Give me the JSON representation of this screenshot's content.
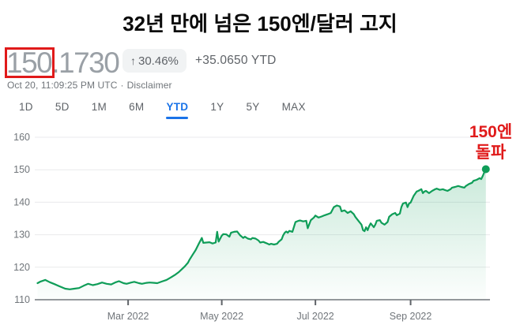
{
  "page_title": "32년 만에 넘은 150엔/달러 고지",
  "quote": {
    "price_main": "150",
    "price_rest": ".1730",
    "change_arrow": "↑",
    "change_pct": "30.46%",
    "ytd_change": "+35.0650 YTD",
    "timestamp": "Oct 20, 11:09:25 PM UTC",
    "separator": "·",
    "disclaimer": "Disclaimer"
  },
  "tabs": [
    {
      "label": "1D",
      "active": false
    },
    {
      "label": "5D",
      "active": false
    },
    {
      "label": "1M",
      "active": false
    },
    {
      "label": "6M",
      "active": false
    },
    {
      "label": "YTD",
      "active": true
    },
    {
      "label": "1Y",
      "active": false
    },
    {
      "label": "5Y",
      "active": false
    },
    {
      "label": "MAX",
      "active": false
    }
  ],
  "annotation": {
    "line1": "150엔",
    "line2": "돌파"
  },
  "colors": {
    "accent_blue": "#1a73e8",
    "line_green": "#0f9d58",
    "alert_red": "#e01a1a",
    "badge_bg": "#f1f3f4",
    "grid": "#e9eaec",
    "axis": "#85898e",
    "axis_label": "#70757a"
  },
  "chart_data": {
    "type": "area",
    "title": "USD/JPY YTD 2022",
    "xlabel": "",
    "ylabel": "",
    "x_unit": "day_of_year_2022",
    "x_start": "Jan 1, 2022",
    "x_end": "Oct 20, 2022",
    "ylim": [
      110,
      165
    ],
    "y_ticks": [
      110,
      120,
      130,
      140,
      150,
      160
    ],
    "x_ticks": [
      {
        "label": "Mar 2022",
        "day": 59
      },
      {
        "label": "May 2022",
        "day": 120
      },
      {
        "label": "Jul 2022",
        "day": 181
      },
      {
        "label": "Sep 2022",
        "day": 243
      }
    ],
    "legend": [],
    "grid": true,
    "end_value": 150.173,
    "points": [
      [
        0,
        115.1
      ],
      [
        2,
        115.6
      ],
      [
        5,
        116.1
      ],
      [
        8,
        115.4
      ],
      [
        11,
        114.8
      ],
      [
        14,
        114.2
      ],
      [
        18,
        113.4
      ],
      [
        21,
        113.2
      ],
      [
        24,
        113.4
      ],
      [
        27,
        113.6
      ],
      [
        30,
        114.3
      ],
      [
        33,
        114.9
      ],
      [
        36,
        114.5
      ],
      [
        39,
        114.8
      ],
      [
        42,
        115.3
      ],
      [
        45,
        114.9
      ],
      [
        48,
        114.7
      ],
      [
        51,
        115.4
      ],
      [
        53,
        115.7
      ],
      [
        56,
        115.1
      ],
      [
        58,
        114.9
      ],
      [
        61,
        115.3
      ],
      [
        63,
        115.5
      ],
      [
        66,
        115.1
      ],
      [
        68,
        114.9
      ],
      [
        71,
        115.2
      ],
      [
        73,
        115.3
      ],
      [
        76,
        115.2
      ],
      [
        78,
        115.1
      ],
      [
        81,
        115.6
      ],
      [
        84,
        116.1
      ],
      [
        87,
        116.9
      ],
      [
        90,
        117.8
      ],
      [
        92,
        118.5
      ],
      [
        94,
        119.4
      ],
      [
        96,
        120.3
      ],
      [
        98,
        121.4
      ],
      [
        99,
        122.3
      ],
      [
        101,
        123.8
      ],
      [
        103,
        125.3
      ],
      [
        105,
        127.2
      ],
      [
        107,
        129.0
      ],
      [
        108,
        127.5
      ],
      [
        110,
        127.6
      ],
      [
        112,
        127.7
      ],
      [
        114,
        127.3
      ],
      [
        116,
        127.6
      ],
      [
        117,
        130.9
      ],
      [
        118,
        127.9
      ],
      [
        120,
        129.7
      ],
      [
        121,
        130.2
      ],
      [
        123,
        130.1
      ],
      [
        125,
        129.4
      ],
      [
        126,
        130.6
      ],
      [
        128,
        130.9
      ],
      [
        130,
        131.0
      ],
      [
        132,
        129.8
      ],
      [
        134,
        129.0
      ],
      [
        135,
        129.4
      ],
      [
        137,
        128.8
      ],
      [
        139,
        128.6
      ],
      [
        140,
        129.0
      ],
      [
        142,
        128.8
      ],
      [
        144,
        128.2
      ],
      [
        145,
        127.6
      ],
      [
        147,
        127.8
      ],
      [
        149,
        127.4
      ],
      [
        151,
        127.0
      ],
      [
        152,
        127.2
      ],
      [
        154,
        127.0
      ],
      [
        156,
        127.2
      ],
      [
        157,
        127.8
      ],
      [
        159,
        128.6
      ],
      [
        160,
        129.8
      ],
      [
        161,
        130.6
      ],
      [
        162,
        131.0
      ],
      [
        163,
        130.6
      ],
      [
        164,
        131.2
      ],
      [
        166,
        130.9
      ],
      [
        168,
        133.9
      ],
      [
        170,
        134.3
      ],
      [
        171,
        134.4
      ],
      [
        173,
        134.1
      ],
      [
        175,
        134.3
      ],
      [
        176,
        132.0
      ],
      [
        178,
        134.5
      ],
      [
        180,
        135.3
      ],
      [
        181,
        135.9
      ],
      [
        183,
        135.3
      ],
      [
        185,
        135.6
      ],
      [
        187,
        136.0
      ],
      [
        189,
        136.3
      ],
      [
        191,
        136.7
      ],
      [
        193,
        138.5
      ],
      [
        195,
        139.0
      ],
      [
        197,
        138.7
      ],
      [
        198,
        137.2
      ],
      [
        200,
        137.5
      ],
      [
        202,
        136.7
      ],
      [
        204,
        137.2
      ],
      [
        206,
        136.3
      ],
      [
        207,
        135.5
      ],
      [
        209,
        134.3
      ],
      [
        211,
        133.1
      ],
      [
        212,
        131.4
      ],
      [
        213,
        131.1
      ],
      [
        214,
        132.3
      ],
      [
        215,
        131.4
      ],
      [
        216,
        132.6
      ],
      [
        217,
        133.5
      ],
      [
        219,
        132.3
      ],
      [
        220,
        133.1
      ],
      [
        221,
        134.3
      ],
      [
        223,
        134.5
      ],
      [
        224,
        133.7
      ],
      [
        226,
        133.1
      ],
      [
        228,
        133.9
      ],
      [
        229,
        135.5
      ],
      [
        231,
        136.3
      ],
      [
        233,
        136.7
      ],
      [
        234,
        136.0
      ],
      [
        236,
        136.5
      ],
      [
        237,
        138.5
      ],
      [
        238,
        139.6
      ],
      [
        240,
        139.9
      ],
      [
        241,
        138.5
      ],
      [
        242,
        139.6
      ],
      [
        243,
        139.9
      ],
      [
        245,
        142.0
      ],
      [
        247,
        143.3
      ],
      [
        248,
        143.5
      ],
      [
        250,
        144.0
      ],
      [
        251,
        142.8
      ],
      [
        252,
        143.3
      ],
      [
        253,
        143.5
      ],
      [
        255,
        142.8
      ],
      [
        257,
        143.5
      ],
      [
        259,
        144.0
      ],
      [
        260,
        144.2
      ],
      [
        262,
        143.8
      ],
      [
        264,
        144.0
      ],
      [
        265,
        143.8
      ],
      [
        267,
        143.5
      ],
      [
        269,
        144.0
      ],
      [
        270,
        144.5
      ],
      [
        272,
        144.7
      ],
      [
        274,
        145.0
      ],
      [
        276,
        144.7
      ],
      [
        278,
        144.5
      ],
      [
        279,
        145.0
      ],
      [
        281,
        145.6
      ],
      [
        283,
        146.0
      ],
      [
        284,
        146.6
      ],
      [
        286,
        146.9
      ],
      [
        288,
        147.4
      ],
      [
        289,
        147.1
      ],
      [
        290,
        148.1
      ],
      [
        291,
        149.2
      ],
      [
        292,
        150.17
      ]
    ]
  }
}
